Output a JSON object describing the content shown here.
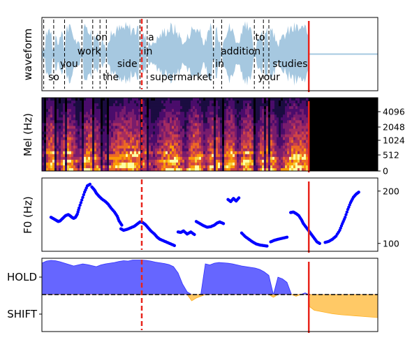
{
  "chart_data": [
    {
      "type": "line",
      "panel": "waveform",
      "ylabel": "waveform",
      "words": [
        {
          "text": "so",
          "t": 0.07,
          "row": "bottom"
        },
        {
          "text": "you",
          "t": 0.2,
          "row": "mid"
        },
        {
          "text": "work",
          "t": 0.39,
          "row": "upper"
        },
        {
          "text": "on",
          "t": 0.59,
          "row": "top"
        },
        {
          "text": "the",
          "t": 0.67,
          "row": "bottom"
        },
        {
          "text": "side",
          "t": 0.83,
          "row": "mid"
        },
        {
          "text": "in",
          "t": 1.12,
          "row": "upper"
        },
        {
          "text": "a",
          "t": 1.17,
          "row": "top"
        },
        {
          "text": "supermarket",
          "t": 1.19,
          "row": "bottom"
        },
        {
          "text": "in",
          "t": 1.91,
          "row": "mid"
        },
        {
          "text": "addition",
          "t": 1.97,
          "row": "upper"
        },
        {
          "text": "to",
          "t": 2.35,
          "row": "top"
        },
        {
          "text": "your",
          "t": 2.38,
          "row": "bottom"
        },
        {
          "text": "studies",
          "t": 2.54,
          "row": "mid"
        }
      ],
      "word_boundaries": [
        0.02,
        0.13,
        0.25,
        0.44,
        0.56,
        0.64,
        0.71,
        1.08,
        1.16,
        1.89,
        1.98,
        2.34,
        2.44,
        2.5
      ],
      "current_time": 1.1,
      "end_time": 2.94,
      "xlim": [
        0,
        3.7
      ]
    },
    {
      "type": "heatmap",
      "panel": "mel",
      "ylabel": "Mel (Hz)",
      "yticks": [
        "0",
        "512",
        "1024",
        "2048",
        "4096"
      ],
      "current_time": 1.1,
      "end_time": 2.94
    },
    {
      "type": "scatter",
      "panel": "f0",
      "ylabel": "F0 (Hz)",
      "ylim": [
        85,
        225
      ],
      "yticks": [
        100,
        200
      ],
      "points_color": "#0000ff",
      "segments": [
        {
          "x": [
            0.1,
            0.13,
            0.16,
            0.18,
            0.2,
            0.23,
            0.26,
            0.29,
            0.31,
            0.33,
            0.35,
            0.37,
            0.39,
            0.41,
            0.44,
            0.47,
            0.5,
            0.53
          ],
          "y": [
            150,
            147,
            144,
            142,
            143,
            148,
            153,
            155,
            153,
            150,
            148,
            150,
            156,
            168,
            183,
            198,
            210,
            213
          ]
        },
        {
          "x": [
            0.55,
            0.58,
            0.6,
            0.63,
            0.66,
            0.7,
            0.73,
            0.76,
            0.8,
            0.83,
            0.85,
            0.88
          ],
          "y": [
            208,
            202,
            196,
            190,
            185,
            180,
            175,
            168,
            160,
            152,
            143,
            135
          ]
        },
        {
          "x": [
            0.87,
            0.9,
            0.94,
            0.98,
            1.02,
            1.05,
            1.08,
            1.11,
            1.14,
            1.17,
            1.2,
            1.24,
            1.27,
            1.3,
            1.34,
            1.38,
            1.42,
            1.46
          ],
          "y": [
            128,
            125,
            127,
            130,
            133,
            137,
            141,
            140,
            136,
            130,
            124,
            118,
            112,
            108,
            105,
            102,
            99,
            96
          ]
        },
        {
          "x": [
            1.5,
            1.53,
            1.56,
            1.6,
            1.64,
            1.68
          ],
          "y": [
            122,
            121,
            124,
            118,
            122,
            117
          ]
        },
        {
          "x": [
            1.7,
            1.74,
            1.78,
            1.82,
            1.86,
            1.9,
            1.93,
            1.96,
            2.0
          ],
          "y": [
            142,
            138,
            134,
            131,
            132,
            135,
            139,
            141,
            138
          ]
        },
        {
          "x": [
            2.05,
            2.08,
            2.11,
            2.14,
            2.17
          ],
          "y": [
            184,
            180,
            186,
            181,
            187
          ]
        },
        {
          "x": [
            2.2,
            2.24,
            2.28,
            2.32,
            2.36,
            2.4,
            2.44,
            2.48
          ],
          "y": [
            120,
            113,
            108,
            103,
            99,
            97,
            96,
            95
          ]
        },
        {
          "x": [
            2.52,
            2.56,
            2.6,
            2.65,
            2.7
          ],
          "y": [
            103,
            106,
            108,
            110,
            112
          ]
        },
        {
          "x": [
            2.74,
            2.77,
            2.8,
            2.83,
            2.86,
            2.88,
            2.91,
            2.94,
            2.97,
            3.0,
            3.03,
            3.06
          ],
          "y": [
            159,
            160,
            157,
            153,
            145,
            138,
            131,
            124,
            117,
            110,
            103,
            100
          ]
        },
        {
          "x": [
            3.12,
            3.16,
            3.2,
            3.24,
            3.28,
            3.31,
            3.34,
            3.37,
            3.4,
            3.43,
            3.46,
            3.49
          ],
          "y": [
            102,
            104,
            108,
            114,
            125,
            138,
            150,
            165,
            178,
            188,
            194,
            198
          ]
        }
      ],
      "current_time": 1.1,
      "end_time": 2.94
    },
    {
      "type": "area",
      "panel": "turn-taking",
      "yticks": [
        "HOLD",
        "SHIFT"
      ],
      "hold_color": "#0000ff",
      "shift_color": "#ffa500",
      "x": [
        0.0,
        0.05,
        0.1,
        0.15,
        0.2,
        0.25,
        0.3,
        0.35,
        0.4,
        0.45,
        0.5,
        0.55,
        0.6,
        0.65,
        0.7,
        0.75,
        0.8,
        0.85,
        0.9,
        0.95,
        1.0,
        1.05,
        1.1,
        1.15,
        1.2,
        1.25,
        1.3,
        1.35,
        1.4,
        1.45,
        1.5,
        1.55,
        1.6,
        1.65,
        1.7,
        1.75,
        1.8,
        1.85,
        1.9,
        1.95,
        2.0,
        2.05,
        2.1,
        2.15,
        2.2,
        2.25,
        2.3,
        2.35,
        2.4,
        2.45,
        2.5,
        2.55,
        2.6,
        2.65,
        2.7,
        2.75,
        2.8,
        2.85,
        2.9,
        2.94,
        2.95,
        3.0,
        3.1,
        3.2,
        3.3,
        3.4,
        3.5,
        3.6,
        3.7
      ],
      "values": [
        0.9,
        0.96,
        0.98,
        0.97,
        0.94,
        0.9,
        0.86,
        0.82,
        0.85,
        0.88,
        0.86,
        0.83,
        0.8,
        0.85,
        0.88,
        0.9,
        0.92,
        0.95,
        0.97,
        0.96,
        0.99,
        0.99,
        0.99,
        0.98,
        0.96,
        0.93,
        0.91,
        0.89,
        0.86,
        0.8,
        0.62,
        0.3,
        0.08,
        -0.18,
        -0.1,
        -0.05,
        0.88,
        0.85,
        0.9,
        0.92,
        0.91,
        0.9,
        0.88,
        0.85,
        0.82,
        0.8,
        0.78,
        0.76,
        0.72,
        0.65,
        0.55,
        -0.08,
        0.5,
        0.45,
        0.35,
        0.0,
        -0.05,
        0.0,
        0.05,
        0.0,
        -0.35,
        -0.45,
        -0.5,
        -0.55,
        -0.58,
        -0.6,
        -0.62,
        -0.64,
        -0.66
      ],
      "current_time": 1.1,
      "end_time": 2.94
    }
  ]
}
